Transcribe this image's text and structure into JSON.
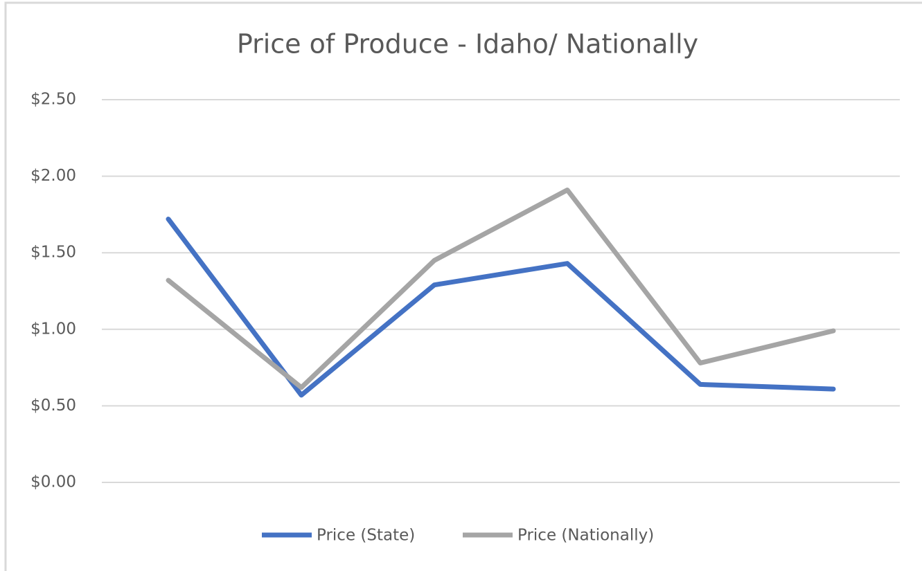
{
  "chart_data": {
    "type": "line",
    "title": "Price of Produce - Idaho/ Nationally",
    "categories": [
      null,
      null,
      null,
      null,
      null,
      null
    ],
    "series": [
      {
        "name": "Price (State)",
        "color": "#4472c4",
        "values": [
          1.72,
          0.57,
          1.29,
          1.43,
          0.64,
          0.61
        ]
      },
      {
        "name": "Price (Nationally)",
        "color": "#a5a5a5",
        "values": [
          1.32,
          0.62,
          1.45,
          1.91,
          0.78,
          0.99
        ]
      }
    ],
    "ylim": [
      0,
      2.5
    ],
    "yticks": [
      {
        "value": 0,
        "label": "$0.00"
      },
      {
        "value": 0.5,
        "label": "$0.50"
      },
      {
        "value": 1,
        "label": "$1.00"
      },
      {
        "value": 1.5,
        "label": "$1.50"
      },
      {
        "value": 2,
        "label": "$2.00"
      },
      {
        "value": 2.5,
        "label": "$2.50"
      }
    ],
    "grid": true,
    "legend": "bottom"
  }
}
